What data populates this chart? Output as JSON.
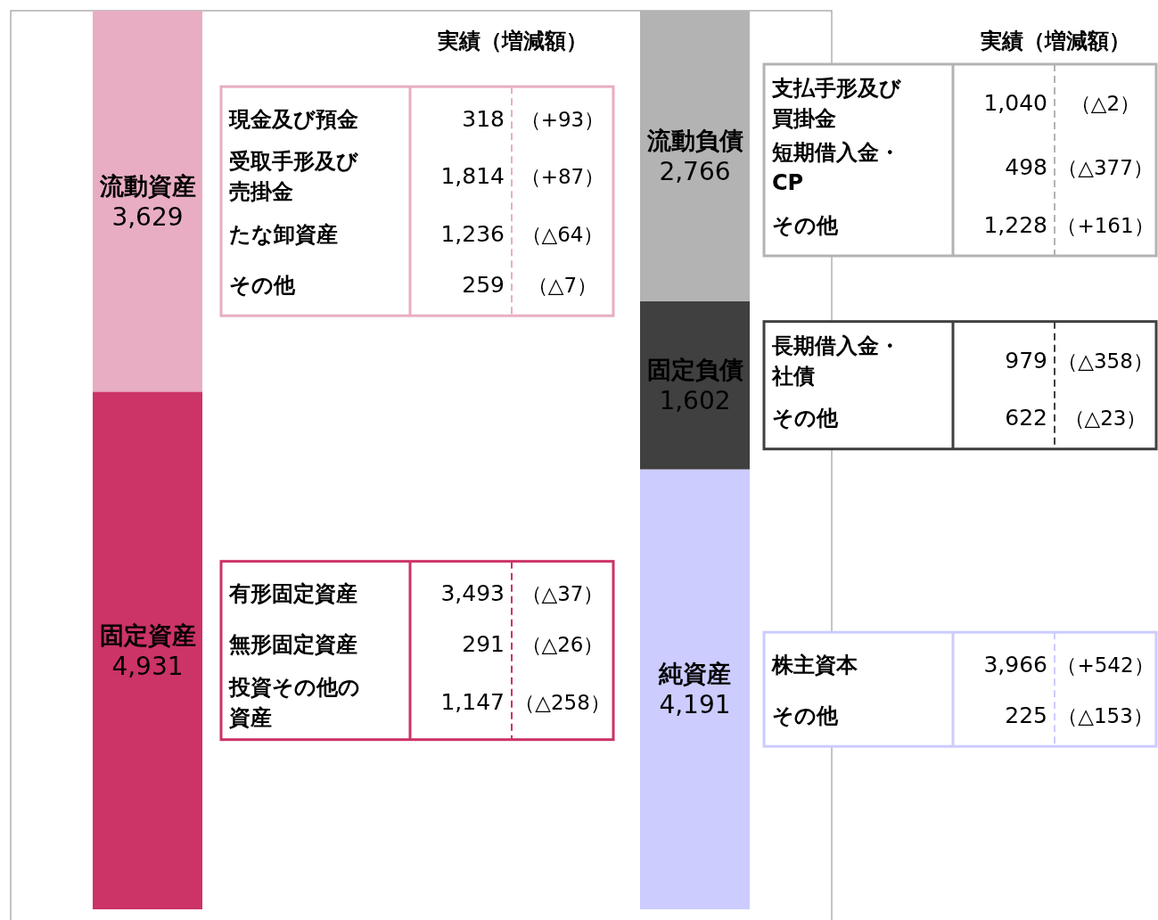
{
  "chart_data": {
    "type": "bar",
    "stacked": true,
    "categories": [
      null,
      null
    ],
    "series": [
      {
        "name": "固定資産",
        "color": "#cc3366",
        "values": [
          4931,
          null
        ],
        "value_labels": [
          "4,931",
          null
        ]
      },
      {
        "name": "流動資産",
        "color": "#e8adc3",
        "values": [
          3629,
          null
        ],
        "value_labels": [
          "3,629",
          null
        ]
      },
      {
        "name": "純資産",
        "color": "#ccccff",
        "values": [
          null,
          4191
        ],
        "value_labels": [
          null,
          "4,191"
        ]
      },
      {
        "name": "固定負債",
        "color": "#404040",
        "values": [
          null,
          1602
        ],
        "value_labels": [
          null,
          "1,602"
        ]
      },
      {
        "name": "流動負債",
        "color": "#b3b3b3",
        "values": [
          null,
          2766
        ],
        "value_labels": [
          null,
          "2,766"
        ]
      }
    ],
    "annotations": [
      "実績（増減額）",
      "実績（増減額）",
      "有形固定資産",
      "3,493",
      "（△37）",
      "無形固定資産",
      "291",
      "（△26）",
      "投資その他の資産",
      "1,147",
      "（△258）",
      "現金及び預金",
      "318",
      "（+93）",
      "受取手形及び売掛金",
      "1,814",
      "（+87）",
      "たな卸資産",
      "1,236",
      "（△64）",
      "その他",
      "259",
      "（△7）",
      "株主資本",
      "3,966",
      "（+542）",
      "その他",
      "225",
      "（△153）",
      "長期借入金・社債",
      "979",
      "（△358）",
      "その他",
      "622",
      "（△23）",
      "支払手形及び買掛金",
      "1,040",
      "（△2）",
      "短期借入金・CP",
      "498",
      "（△377）",
      "その他",
      "1,228",
      "（+161）"
    ]
  }
}
